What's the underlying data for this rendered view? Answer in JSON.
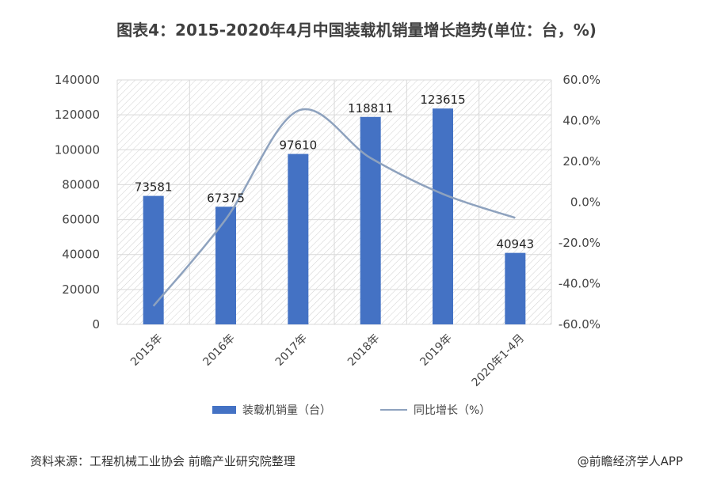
{
  "title": "图表4：2015-2020年4月中国装载机销量增长趋势(单位：台，%)",
  "source": "资料来源：工程机械工业协会 前瞻产业研究院整理",
  "credit": "@前瞻经济学人APP",
  "colors": {
    "bar": "#4472C4",
    "line": "#8EA2BE",
    "grid": "#D9D9D9",
    "hatch": "#C8C8C8",
    "text": "#404040"
  },
  "chart_data": {
    "type": "bar",
    "categories": [
      "2015年",
      "2016年",
      "2017年",
      "2018年",
      "2019年",
      "2020年1-4月"
    ],
    "series": [
      {
        "name": "装载机销量（台）",
        "type": "bar",
        "axis": "left",
        "values": [
          73581,
          67375,
          97610,
          118811,
          123615,
          40943
        ],
        "data_labels": [
          "73581",
          "67375",
          "97610",
          "118811",
          "123615",
          "40943"
        ]
      },
      {
        "name": "同比增长（%）",
        "type": "line",
        "axis": "right",
        "values": [
          -51.0,
          -8.4,
          44.9,
          21.7,
          4.0,
          -7.7
        ]
      }
    ],
    "y_left": {
      "ylim": [
        0,
        140000
      ],
      "ticks": [
        0,
        20000,
        40000,
        60000,
        80000,
        100000,
        120000,
        140000
      ],
      "tick_labels": [
        "0",
        "20000",
        "40000",
        "60000",
        "80000",
        "100000",
        "120000",
        "140000"
      ]
    },
    "y_right": {
      "ylim": [
        -60,
        60
      ],
      "ticks": [
        -60,
        -40,
        -20,
        0,
        20,
        40,
        60
      ],
      "tick_labels": [
        "-60.0%",
        "-40.0%",
        "-20.0%",
        "0.0%",
        "20.0%",
        "40.0%",
        "60.0%"
      ]
    },
    "grid": true,
    "legend": "bottom"
  }
}
